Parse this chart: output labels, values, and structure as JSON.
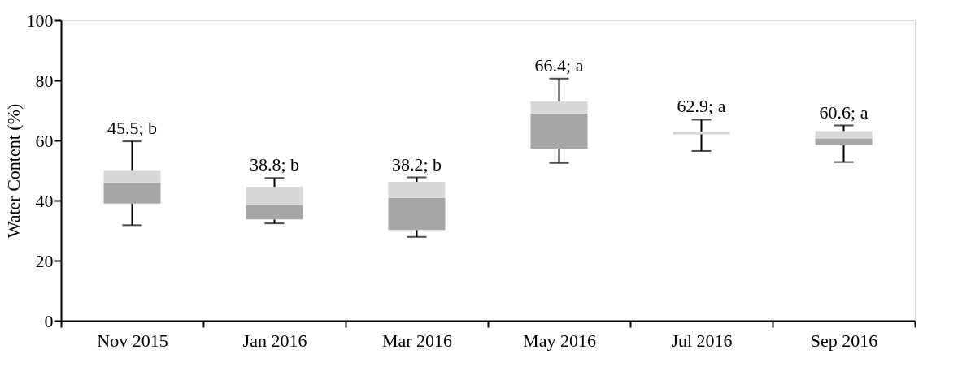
{
  "chart_data": {
    "type": "box",
    "ylabel": "Water Content (%)",
    "categories": [
      "Nov 2015",
      "Jan 2016",
      "Mar 2016",
      "May 2016",
      "Jul 2016",
      "Sep 2016"
    ],
    "series": [
      {
        "color": "#a6a6a6",
        "boxes": [
          {
            "low": 31.8,
            "q1": 39.0,
            "median": 45.9,
            "q3": 50.1,
            "high": 59.7
          },
          {
            "low": 32.4,
            "q1": 33.7,
            "median": 38.5,
            "q3": 44.6,
            "high": 47.5
          },
          {
            "low": 27.9,
            "q1": 30.2,
            "median": 40.8,
            "q3": 46.2,
            "high": 47.7
          },
          {
            "low": 52.5,
            "q1": 57.3,
            "median": 69.0,
            "q3": 73.0,
            "high": 80.6
          },
          {
            "low": 56.5,
            "q1": 62.1,
            "median": 62.3,
            "q3": 62.9,
            "high": 66.9
          },
          {
            "low": 52.8,
            "q1": 58.4,
            "median": 60.7,
            "q3": 63.1,
            "high": 65.0
          }
        ]
      }
    ],
    "ylim": [
      0,
      100
    ],
    "yticks": [
      0,
      20,
      40,
      60,
      80,
      100
    ],
    "grid": false,
    "annotations": [
      {
        "text": "45.5; b",
        "x": "Nov 2015",
        "y": 59.7
      },
      {
        "text": "38.8; b",
        "x": "Jan 2016",
        "y": 47.5
      },
      {
        "text": "38.2; b",
        "x": "Mar 2016",
        "y": 47.7
      },
      {
        "text": "66.4; a",
        "x": "May 2016",
        "y": 80.6
      },
      {
        "text": "62.9; a",
        "x": "Jul 2016",
        "y": 66.9
      },
      {
        "text": "60.6; a",
        "x": "Sep 2016",
        "y": 65.0
      }
    ]
  }
}
